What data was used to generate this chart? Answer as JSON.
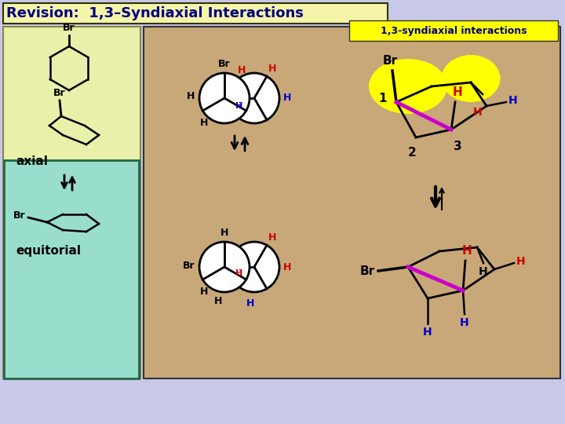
{
  "title": "Revision:  1,3–Syndiaxial Interactions",
  "title_bg": "#f5f5aa",
  "title_border": "#333300",
  "title_color": "#000080",
  "outer_bg": "#c8c8e8",
  "left_panel_bg": "#e8f0aa",
  "left_panel_border": "#888844",
  "cyan_box_bg": "#99ddcc",
  "cyan_box_border": "#226644",
  "tan_panel_bg": "#c8a878",
  "tan_panel_border": "#333333",
  "yellow_highlight": "#ffff00",
  "syndiaxial_label": "1,3-syndiaxial interactions",
  "syndiaxial_label_color": "#000080",
  "axial_label": "axial",
  "equitorial_label": "equitorial",
  "h_red_color": "#cc0000",
  "h_blue_color": "#0000cc",
  "magenta_color": "#cc00cc",
  "arrow_color": "#111111"
}
